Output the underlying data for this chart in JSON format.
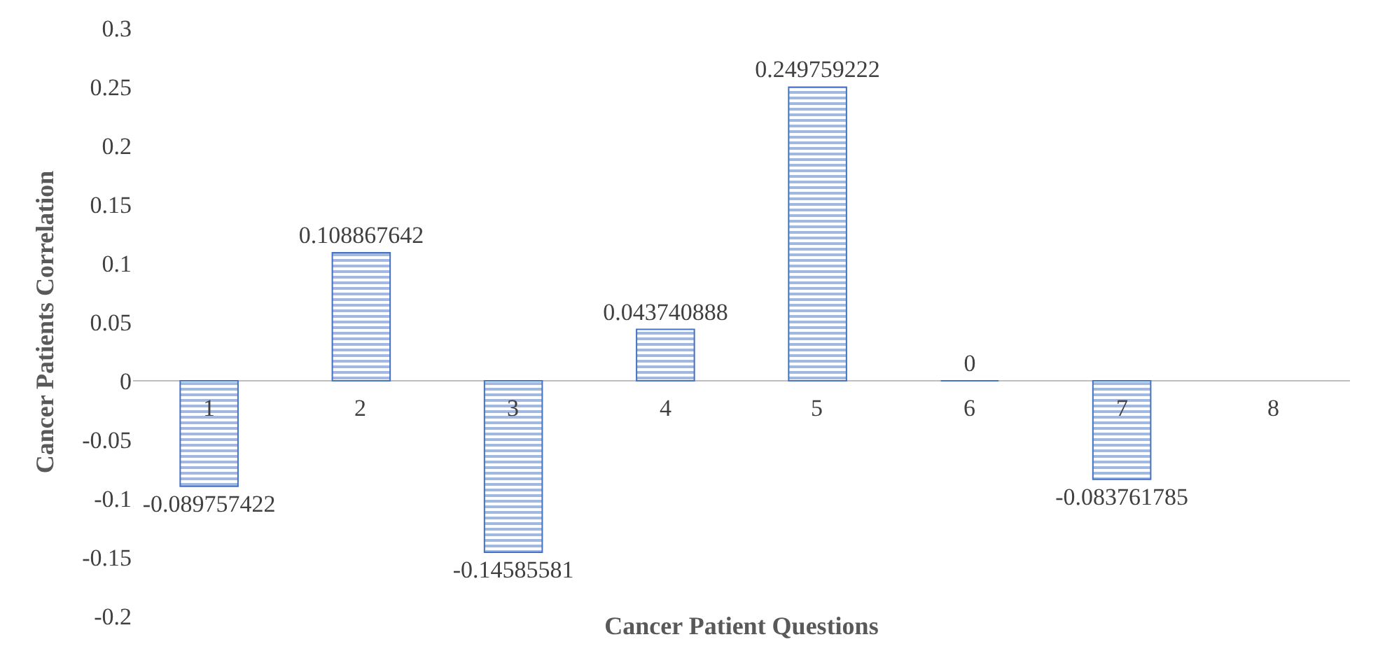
{
  "chart_data": {
    "type": "bar",
    "xlabel": "Cancer Patient Questions",
    "ylabel": "Cancer Patients Correlation",
    "categories": [
      "1",
      "2",
      "3",
      "4",
      "5",
      "6",
      "7",
      "8"
    ],
    "values": [
      -0.089757422,
      0.108867642,
      -0.14585581,
      0.043740888,
      0.249759222,
      0,
      -0.083761785,
      null
    ],
    "color": "#4472c4",
    "ylim": [
      -0.2,
      0.3
    ],
    "yticks": [
      -0.2,
      -0.15,
      -0.1,
      -0.05,
      0,
      0.05,
      0.1,
      0.15,
      0.2,
      0.25,
      0.3
    ],
    "data_labels": true,
    "legend": false
  }
}
